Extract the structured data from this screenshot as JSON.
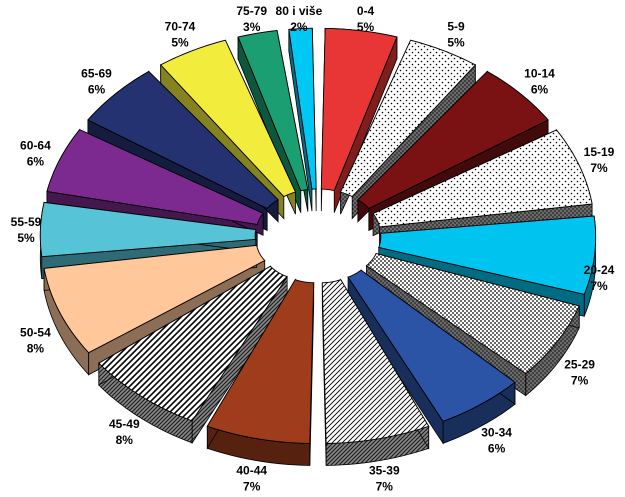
{
  "chart_data": {
    "type": "pie",
    "style": "3d-exploded",
    "title": "",
    "legend": "none",
    "slices": [
      {
        "label": "0-4",
        "value": 5,
        "value_label": "5%",
        "color": "#e83535",
        "pattern": "solid"
      },
      {
        "label": "5-9",
        "value": 5,
        "value_label": "5%",
        "color": "#ffffff",
        "pattern": "dots"
      },
      {
        "label": "10-14",
        "value": 6,
        "value_label": "6%",
        "color": "#7a1214",
        "pattern": "solid"
      },
      {
        "label": "15-19",
        "value": 7,
        "value_label": "7%",
        "color": "#ffffff",
        "pattern": "dots"
      },
      {
        "label": "20-24",
        "value": 7,
        "value_label": "7%",
        "color": "#00c4f0",
        "pattern": "solid"
      },
      {
        "label": "25-29",
        "value": 7,
        "value_label": "7%",
        "color": "#ffffff",
        "pattern": "dense-dots"
      },
      {
        "label": "30-34",
        "value": 6,
        "value_label": "6%",
        "color": "#2c54a6",
        "pattern": "solid"
      },
      {
        "label": "35-39",
        "value": 7,
        "value_label": "7%",
        "color": "#ffffff",
        "pattern": "diagonal"
      },
      {
        "label": "40-44",
        "value": 7,
        "value_label": "7%",
        "color": "#9e3c1c",
        "pattern": "solid"
      },
      {
        "label": "45-49",
        "value": 8,
        "value_label": "8%",
        "color": "#ffffff",
        "pattern": "zigzag"
      },
      {
        "label": "50-54",
        "value": 8,
        "value_label": "8%",
        "color": "#ffc79a",
        "pattern": "solid"
      },
      {
        "label": "55-59",
        "value": 5,
        "value_label": "5%",
        "color": "#56c3d6",
        "pattern": "solid"
      },
      {
        "label": "60-64",
        "value": 6,
        "value_label": "6%",
        "color": "#7d2a90",
        "pattern": "solid"
      },
      {
        "label": "65-69",
        "value": 6,
        "value_label": "6%",
        "color": "#253272",
        "pattern": "solid"
      },
      {
        "label": "70-74",
        "value": 5,
        "value_label": "5%",
        "color": "#f2ec3c",
        "pattern": "solid"
      },
      {
        "label": "75-79",
        "value": 3,
        "value_label": "3%",
        "color": "#1a9e72",
        "pattern": "solid"
      },
      {
        "label": "80 i više",
        "value": 2,
        "value_label": "2%",
        "color": "#00c8f5",
        "pattern": "solid"
      }
    ]
  }
}
